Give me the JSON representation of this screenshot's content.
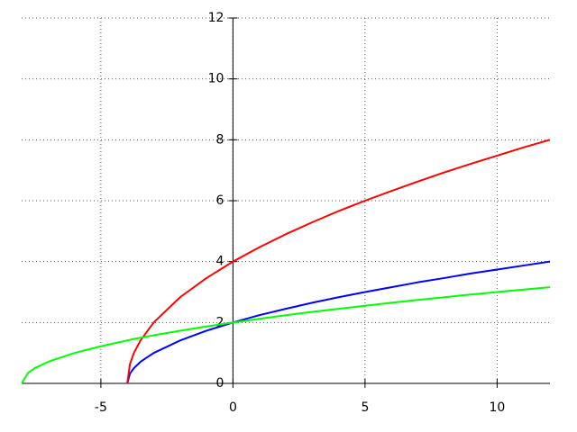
{
  "chart_data": {
    "type": "line",
    "x": [
      -8,
      -7.75,
      -7.5,
      -7,
      -6,
      -5,
      -4,
      -3.9,
      -3.75,
      -3.5,
      -3,
      -2,
      -1,
      0,
      1,
      2,
      3,
      4,
      5,
      6,
      7,
      8,
      9,
      10,
      11,
      12
    ],
    "series": [
      {
        "color": "#0000ff",
        "values": [
          null,
          null,
          null,
          null,
          null,
          null,
          0,
          0.32,
          0.5,
          0.71,
          1,
          1.41,
          1.73,
          2,
          2.24,
          2.45,
          2.65,
          2.83,
          3,
          3.16,
          3.32,
          3.46,
          3.61,
          3.74,
          3.87,
          4
        ]
      },
      {
        "color": "#ff0000",
        "values": [
          null,
          null,
          null,
          null,
          null,
          null,
          0,
          0.63,
          1,
          1.41,
          2,
          2.83,
          3.46,
          4,
          4.47,
          4.9,
          5.29,
          5.66,
          6,
          6.32,
          6.63,
          6.93,
          7.21,
          7.48,
          7.75,
          8
        ]
      },
      {
        "color": "#00ff00",
        "values": [
          0,
          0.35,
          0.5,
          0.71,
          1,
          1.22,
          1.41,
          1.43,
          1.46,
          1.5,
          1.58,
          1.73,
          1.87,
          2,
          2.12,
          2.24,
          2.35,
          2.45,
          2.55,
          2.65,
          2.74,
          2.83,
          2.92,
          3,
          3.08,
          3.16
        ]
      }
    ],
    "xlim": [
      -8,
      12
    ],
    "ylim": [
      0,
      12
    ],
    "xticks": [
      -5,
      0,
      5,
      10
    ],
    "yticks": [
      0,
      2,
      4,
      6,
      8,
      10,
      12
    ],
    "grid": true
  }
}
